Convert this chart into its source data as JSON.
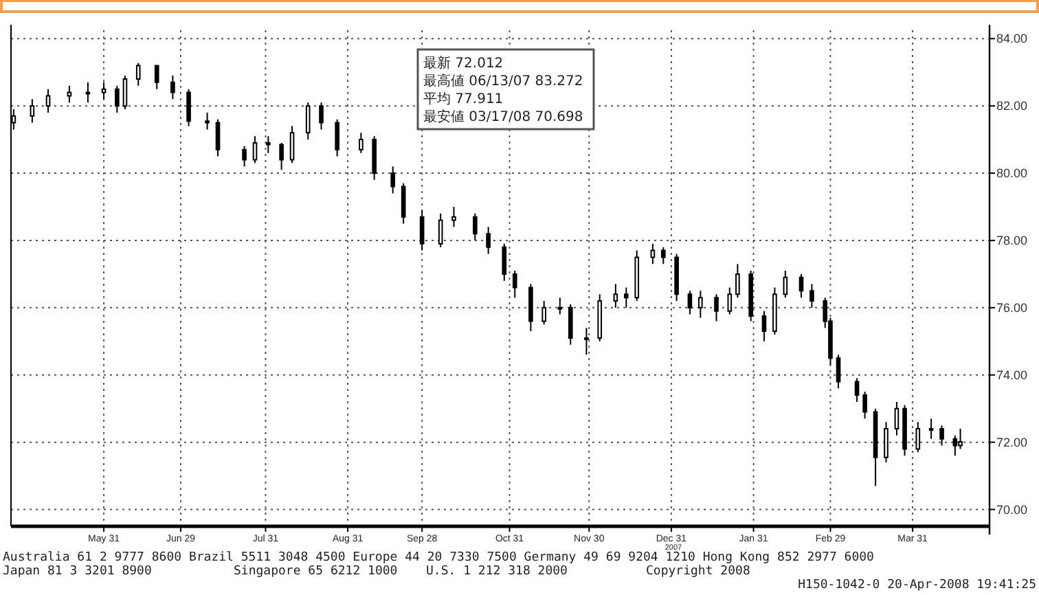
{
  "chart_data": {
    "type": "candlestick",
    "color": "#000000",
    "x": [
      "2007-04-27",
      "2007-05-04",
      "2007-05-10",
      "2007-05-18",
      "2007-05-25",
      "2007-05-31",
      "2007-06-05",
      "2007-06-08",
      "2007-06-13",
      "2007-06-20",
      "2007-06-26",
      "2007-07-02",
      "2007-07-09",
      "2007-07-13",
      "2007-07-23",
      "2007-07-27",
      "2007-08-01",
      "2007-08-06",
      "2007-08-10",
      "2007-08-16",
      "2007-08-21",
      "2007-08-27",
      "2007-09-05",
      "2007-09-10",
      "2007-09-17",
      "2007-09-21",
      "2007-09-28",
      "2007-10-05",
      "2007-10-10",
      "2007-10-18",
      "2007-10-23",
      "2007-10-29",
      "2007-11-02",
      "2007-11-08",
      "2007-11-13",
      "2007-11-19",
      "2007-11-23",
      "2007-11-29",
      "2007-12-04",
      "2007-12-10",
      "2007-12-14",
      "2007-12-18",
      "2007-12-24",
      "2007-12-28",
      "2008-01-02",
      "2008-01-07",
      "2008-01-11",
      "2008-01-17",
      "2008-01-22",
      "2008-01-25",
      "2008-01-30",
      "2008-02-04",
      "2008-02-08",
      "2008-02-12",
      "2008-02-18",
      "2008-02-22",
      "2008-02-27",
      "2008-02-29",
      "2008-03-03",
      "2008-03-10",
      "2008-03-13",
      "2008-03-17",
      "2008-03-21",
      "2008-03-25",
      "2008-03-28",
      "2008-04-02",
      "2008-04-07",
      "2008-04-11",
      "2008-04-16",
      "2008-04-18"
    ],
    "ohlc": [
      [
        81.5,
        81.9,
        81.3,
        81.7
      ],
      [
        81.7,
        82.2,
        81.5,
        82.0
      ],
      [
        82.0,
        82.5,
        81.8,
        82.3
      ],
      [
        82.3,
        82.6,
        82.1,
        82.4
      ],
      [
        82.4,
        82.7,
        82.1,
        82.4
      ],
      [
        82.4,
        82.7,
        82.2,
        82.5
      ],
      [
        82.5,
        82.6,
        81.8,
        82.0
      ],
      [
        82.0,
        82.9,
        81.9,
        82.8
      ],
      [
        82.8,
        83.272,
        82.6,
        83.2
      ],
      [
        83.2,
        83.2,
        82.5,
        82.7
      ],
      [
        82.7,
        82.9,
        82.2,
        82.4
      ],
      [
        82.4,
        82.5,
        81.4,
        81.55
      ],
      [
        81.55,
        81.8,
        81.3,
        81.5
      ],
      [
        81.5,
        81.6,
        80.5,
        80.7
      ],
      [
        80.7,
        80.8,
        80.2,
        80.4
      ],
      [
        80.4,
        81.1,
        80.3,
        80.9
      ],
      [
        80.9,
        81.1,
        80.6,
        80.85
      ],
      [
        80.85,
        80.9,
        80.1,
        80.4
      ],
      [
        80.4,
        81.4,
        80.3,
        81.2
      ],
      [
        81.2,
        82.1,
        81.0,
        82.0
      ],
      [
        82.0,
        82.1,
        81.3,
        81.5
      ],
      [
        81.5,
        81.6,
        80.5,
        80.7
      ],
      [
        80.7,
        81.2,
        80.6,
        81.0
      ],
      [
        81.0,
        81.1,
        79.8,
        80.0
      ],
      [
        80.0,
        80.2,
        79.4,
        79.6
      ],
      [
        79.6,
        79.7,
        78.5,
        78.7
      ],
      [
        78.7,
        78.9,
        77.7,
        77.9
      ],
      [
        77.9,
        78.8,
        77.8,
        78.6
      ],
      [
        78.6,
        79.0,
        78.4,
        78.7
      ],
      [
        78.7,
        78.8,
        78.0,
        78.2
      ],
      [
        78.2,
        78.4,
        77.6,
        77.8
      ],
      [
        77.8,
        77.9,
        76.8,
        77.0
      ],
      [
        77.0,
        77.1,
        76.3,
        76.6
      ],
      [
        76.6,
        76.7,
        75.3,
        75.6
      ],
      [
        75.6,
        76.2,
        75.5,
        76.0
      ],
      [
        76.0,
        76.3,
        75.8,
        76.0
      ],
      [
        76.0,
        76.1,
        74.9,
        75.1
      ],
      [
        75.1,
        75.4,
        74.6,
        75.1
      ],
      [
        75.1,
        76.4,
        75.0,
        76.2
      ],
      [
        76.2,
        76.7,
        76.0,
        76.4
      ],
      [
        76.4,
        76.6,
        76.0,
        76.3
      ],
      [
        76.3,
        77.7,
        76.2,
        77.5
      ],
      [
        77.5,
        77.9,
        77.3,
        77.7
      ],
      [
        77.7,
        77.8,
        77.3,
        77.5
      ],
      [
        77.5,
        77.6,
        76.2,
        76.4
      ],
      [
        76.4,
        76.5,
        75.8,
        76.0
      ],
      [
        76.0,
        76.5,
        75.7,
        76.3
      ],
      [
        76.3,
        76.4,
        75.6,
        75.9
      ],
      [
        75.9,
        76.6,
        75.8,
        76.4
      ],
      [
        76.4,
        77.3,
        76.3,
        77.0
      ],
      [
        77.0,
        77.1,
        75.6,
        75.75
      ],
      [
        75.75,
        75.9,
        75.0,
        75.3
      ],
      [
        75.3,
        76.6,
        75.2,
        76.4
      ],
      [
        76.4,
        77.1,
        76.3,
        76.9
      ],
      [
        76.9,
        77.0,
        76.3,
        76.5
      ],
      [
        76.5,
        76.7,
        76.0,
        76.2
      ],
      [
        76.2,
        76.3,
        75.4,
        75.6
      ],
      [
        75.6,
        75.7,
        74.3,
        74.5
      ],
      [
        74.5,
        74.6,
        73.6,
        73.8
      ],
      [
        73.8,
        73.9,
        73.2,
        73.4
      ],
      [
        73.4,
        73.5,
        72.7,
        72.9
      ],
      [
        72.9,
        73.0,
        70.698,
        71.55
      ],
      [
        71.55,
        72.6,
        71.4,
        72.4
      ],
      [
        72.4,
        73.2,
        72.2,
        73.0
      ],
      [
        73.0,
        73.1,
        71.6,
        71.8
      ],
      [
        71.8,
        72.6,
        71.7,
        72.4
      ],
      [
        72.4,
        72.7,
        72.1,
        72.4
      ],
      [
        72.4,
        72.5,
        71.9,
        72.1
      ],
      [
        72.1,
        72.2,
        71.6,
        71.9
      ],
      [
        71.9,
        72.4,
        71.8,
        72.012
      ]
    ],
    "xlim": [
      "2007-04-26",
      "2008-04-29"
    ],
    "xticks": [
      {
        "value": "2007-05-31",
        "label": "May 31"
      },
      {
        "value": "2007-06-29",
        "label": "Jun 29"
      },
      {
        "value": "2007-07-31",
        "label": "Jul 31"
      },
      {
        "value": "2007-08-31",
        "label": "Aug 31"
      },
      {
        "value": "2007-09-28",
        "label": "Sep 28"
      },
      {
        "value": "2007-10-31",
        "label": "Oct 31"
      },
      {
        "value": "2007-11-30",
        "label": "Nov 30"
      },
      {
        "value": "2007-12-31",
        "label": "Dec 31"
      },
      {
        "value": "2008-01-31",
        "label": "Jan 31"
      },
      {
        "value": "2008-02-29",
        "label": "Feb 29"
      },
      {
        "value": "2008-03-31",
        "label": "Mar 31"
      }
    ],
    "ylim": [
      69.5,
      84.25
    ],
    "yticks": [
      {
        "value": 70,
        "label": "70.00"
      },
      {
        "value": 72,
        "label": "72.00"
      },
      {
        "value": 74,
        "label": "74.00"
      },
      {
        "value": 76,
        "label": "76.00"
      },
      {
        "value": 78,
        "label": "78.00"
      },
      {
        "value": 80,
        "label": "80.00"
      },
      {
        "value": 82,
        "label": "82.00"
      },
      {
        "value": 84,
        "label": "84.00"
      }
    ],
    "grid": true,
    "annotations": [
      "最新 72.012",
      "最高値 06/13/07 83.272",
      "平均 77.911",
      "最安値 03/17/08 70.698",
      "Australia 61 2 9777 8600 Brazil 5511 3048 4500 Europe 44 20 7330 7500 Germany 49 69 9204 1210 Hong Kong 852 2977 6000",
      "Japan 81 3 3201 8900",
      "Singapore 65 6212 1000",
      "U.S. 1 212 318 2000",
      "Copyright 2008",
      "H150-1042-0 20-Apr-2008 19:41:25",
      "2007"
    ]
  }
}
